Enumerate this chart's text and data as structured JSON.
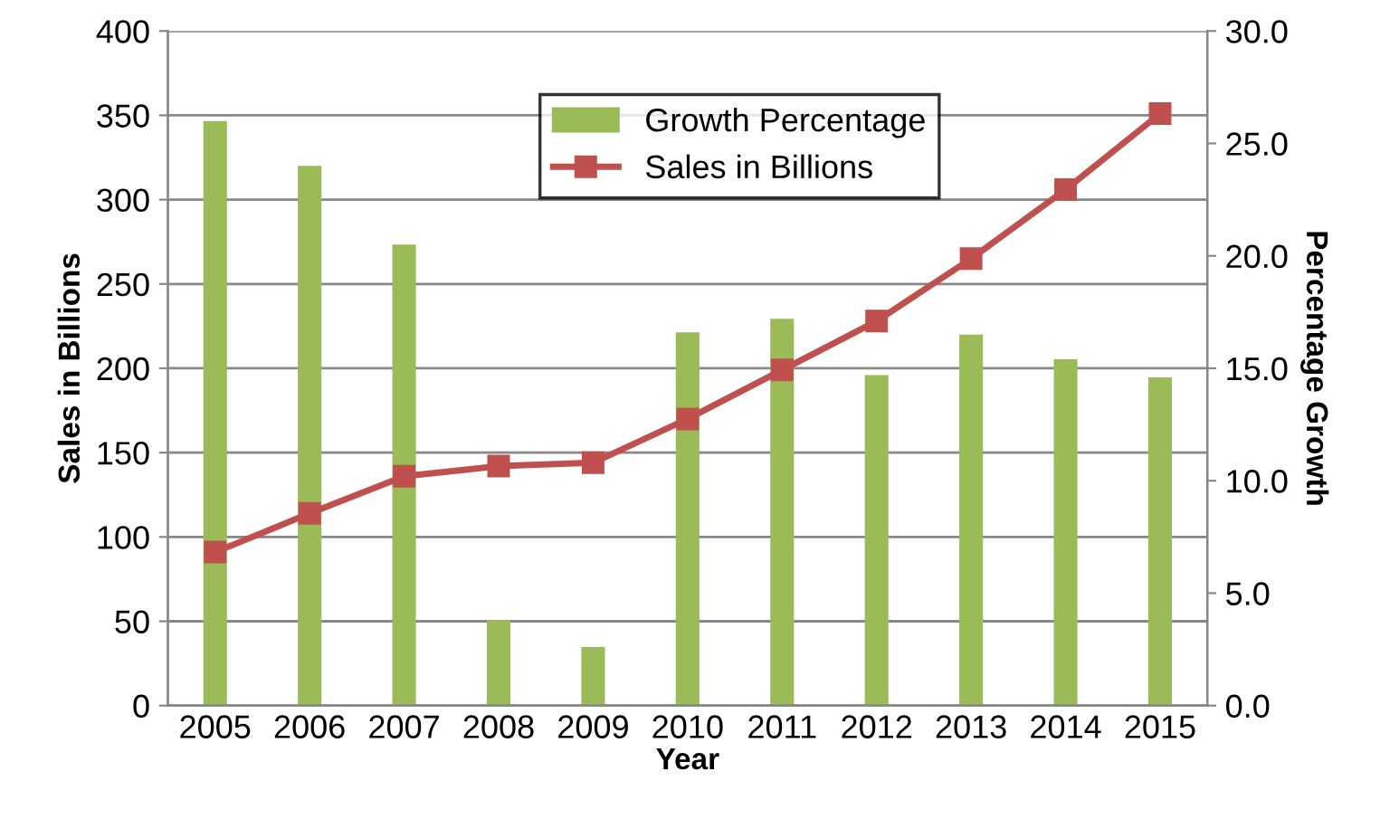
{
  "chart_data": {
    "type": "bar",
    "xlabel": "Year",
    "ylabel": "Sales in Billions",
    "y2label": "Percentage Growth",
    "categories": [
      "2005",
      "2006",
      "2007",
      "2008",
      "2009",
      "2010",
      "2011",
      "2012",
      "2013",
      "2014",
      "2015"
    ],
    "series": [
      {
        "name": "Growth Percentage",
        "axis": "y2",
        "color": "#9bbb59",
        "values": [
          26.0,
          24.0,
          20.5,
          3.8,
          2.6,
          16.6,
          17.2,
          14.7,
          16.5,
          15.4,
          14.6
        ]
      },
      {
        "name": "Sales in Billions",
        "type": "line",
        "axis": "y",
        "color": "#c0504d",
        "marker": "square",
        "values": [
          91,
          114,
          136,
          142,
          144,
          170,
          199,
          228,
          265,
          306,
          351
        ]
      }
    ],
    "ylim": [
      0,
      400
    ],
    "yticks": [
      0,
      50,
      100,
      150,
      200,
      250,
      300,
      350,
      400
    ],
    "y2lim": [
      0,
      30
    ],
    "y2ticks": [
      {
        "value": 0,
        "label": "0.0"
      },
      {
        "value": 5,
        "label": "5.0"
      },
      {
        "value": 10,
        "label": "10.0"
      },
      {
        "value": 15,
        "label": "15.0"
      },
      {
        "value": 20,
        "label": "20.0"
      },
      {
        "value": 25,
        "label": "25.0"
      },
      {
        "value": 30,
        "label": "30.0"
      }
    ],
    "grid": "y",
    "legend": "top"
  }
}
